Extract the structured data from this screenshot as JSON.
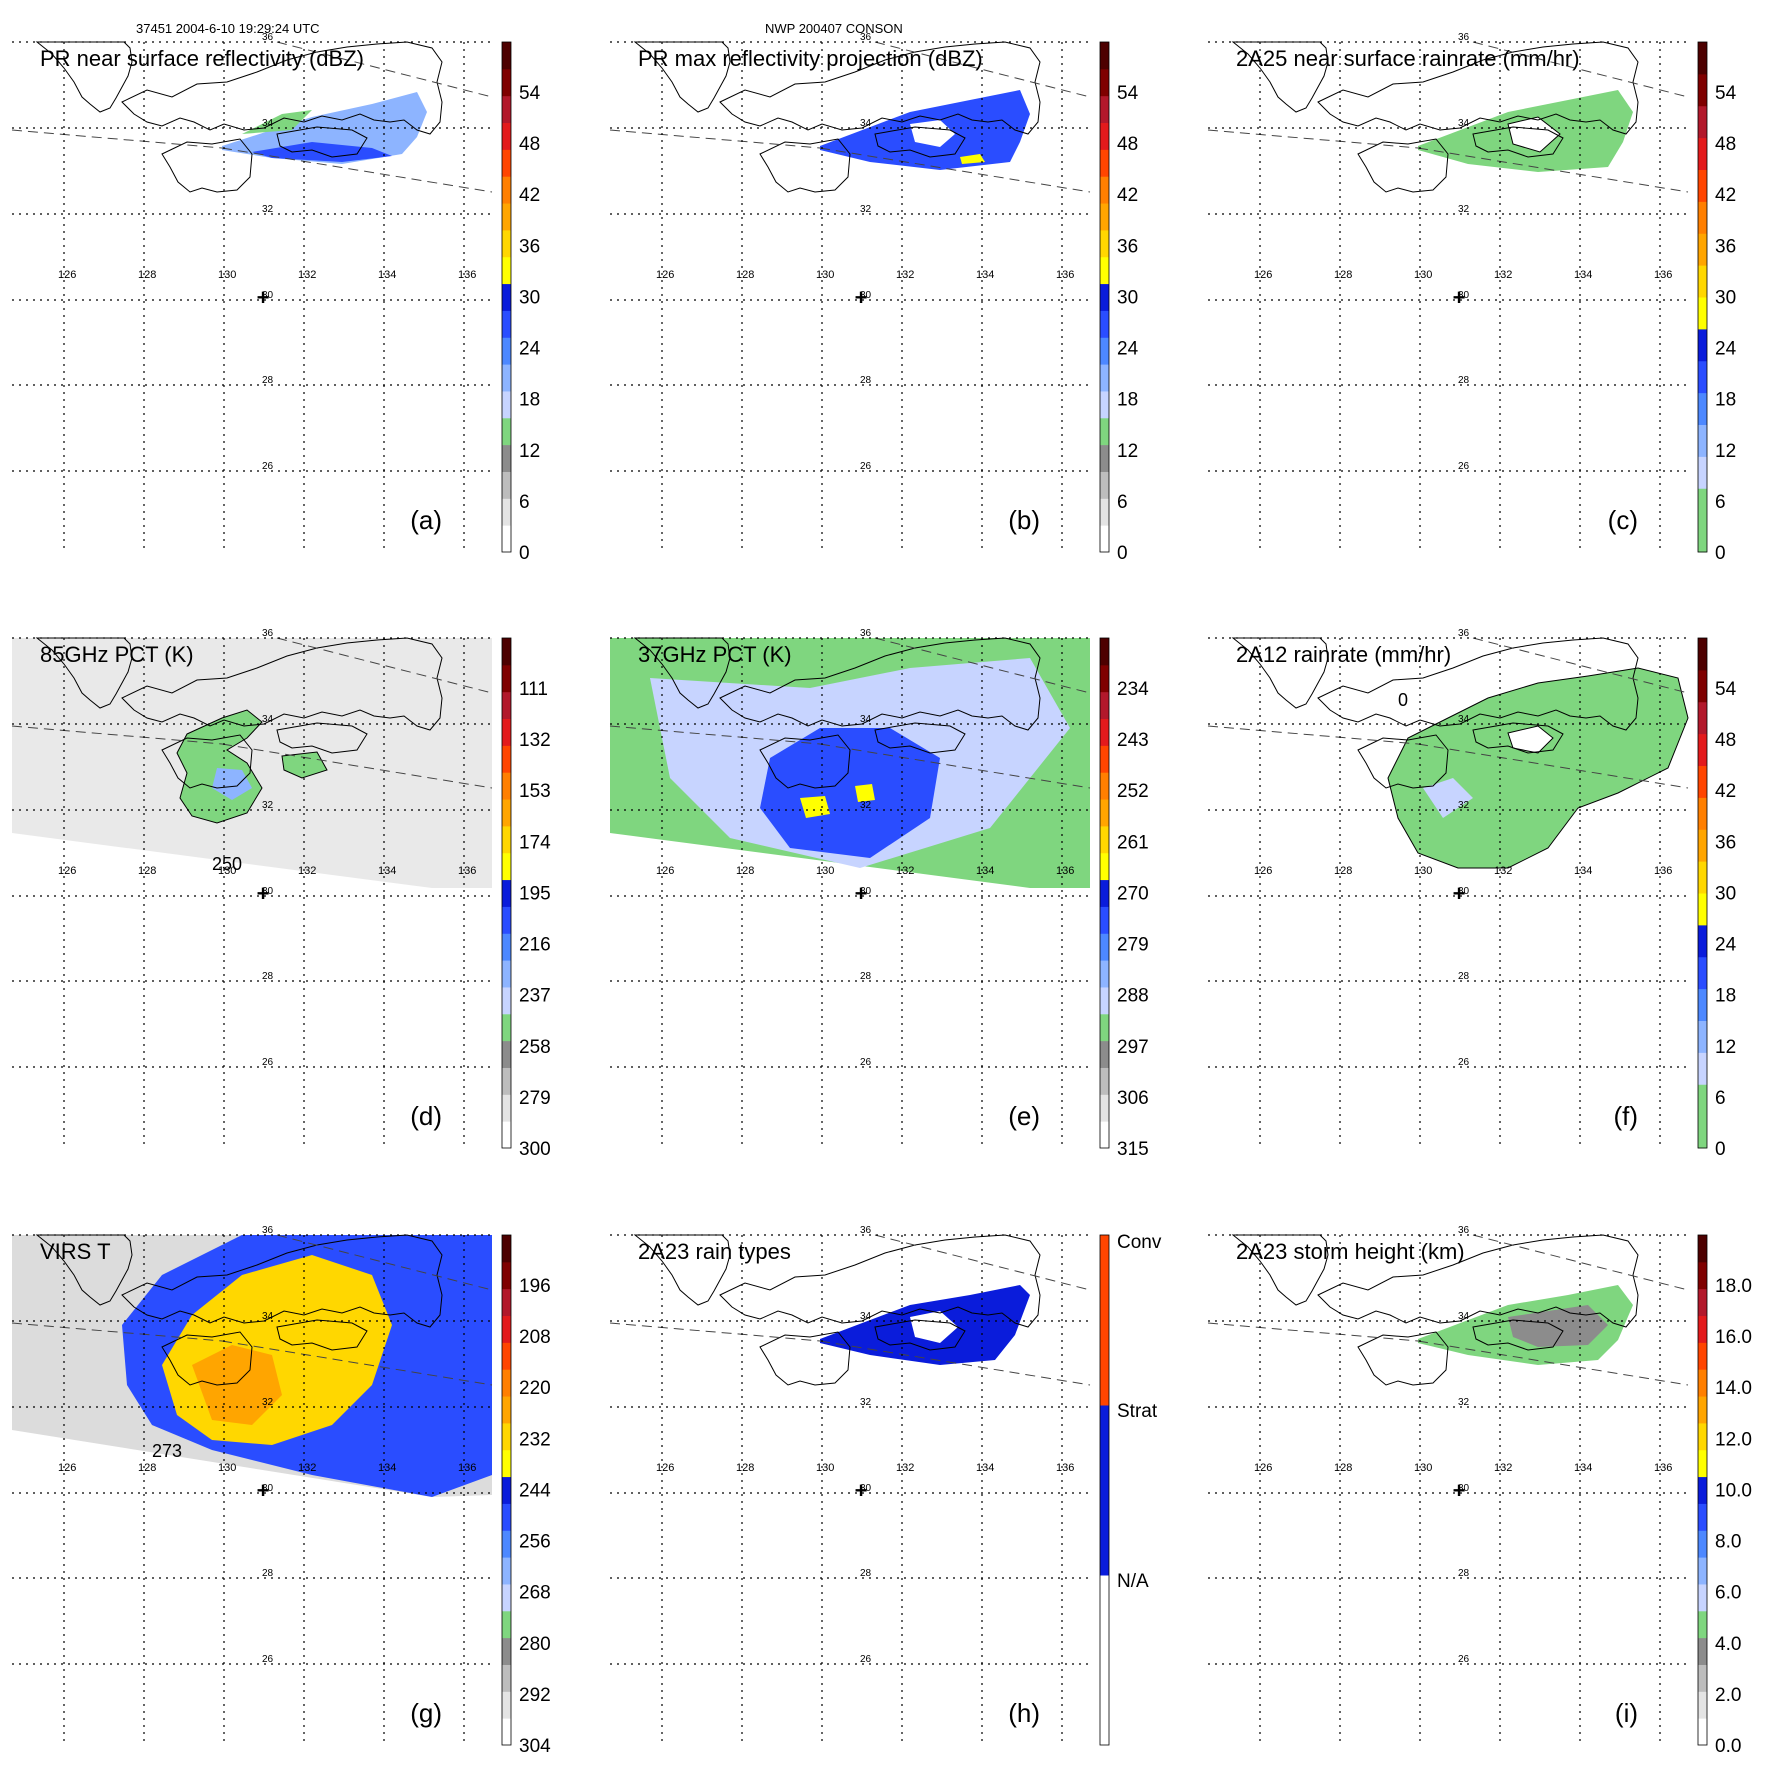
{
  "header": {
    "orbit_time": "37451 2004-6-10 19:29:24 UTC",
    "storm": "NWP 200407 CONSON"
  },
  "map": {
    "lon_labels": [
      "126",
      "128",
      "130",
      "132",
      "134",
      "136"
    ],
    "lat_labels": [
      "36",
      "34",
      "32",
      "30",
      "28",
      "26"
    ],
    "center_marker": "+"
  },
  "panels": [
    {
      "id": "a",
      "title": "PR near surface reflectivity (dBZ)",
      "tag": "(a)",
      "cb_ticks": [
        "54",
        "48",
        "42",
        "36",
        "30",
        "24",
        "18",
        "12",
        "6",
        "0"
      ],
      "colors": [
        "#ffffff",
        "#e4e4e4",
        "#bdbdbd",
        "#8c8c8c",
        "#7fd67f",
        "#c7d4ff",
        "#8db4ff",
        "#4d88ff",
        "#2a4dff",
        "#0a1cdb",
        "#ffff00",
        "#ffd700",
        "#ffa500",
        "#ff7f00",
        "#ff4500",
        "#e31a1c",
        "#b2182b",
        "#7f0000",
        "#4d0000"
      ]
    },
    {
      "id": "b",
      "title": "PR max reflectivity projection (dBZ)",
      "tag": "(b)",
      "cb_ticks": [
        "54",
        "48",
        "42",
        "36",
        "30",
        "24",
        "18",
        "12",
        "6",
        "0"
      ],
      "colors": [
        "#ffffff",
        "#e4e4e4",
        "#bdbdbd",
        "#8c8c8c",
        "#7fd67f",
        "#c7d4ff",
        "#8db4ff",
        "#4d88ff",
        "#2a4dff",
        "#0a1cdb",
        "#ffff00",
        "#ffd700",
        "#ffa500",
        "#ff7f00",
        "#ff4500",
        "#e31a1c",
        "#b2182b",
        "#7f0000",
        "#4d0000"
      ]
    },
    {
      "id": "c",
      "title": "2A25 near surface rainrate (mm/hr)",
      "tag": "(c)",
      "cb_ticks": [
        "54",
        "48",
        "42",
        "36",
        "30",
        "24",
        "18",
        "12",
        "6",
        "0"
      ],
      "colors": [
        "#7fd67f",
        "#7fd67f",
        "#c7d4ff",
        "#8db4ff",
        "#4d88ff",
        "#2a4dff",
        "#0a1cdb",
        "#ffff00",
        "#ffd700",
        "#ffa500",
        "#ff7f00",
        "#ff4500",
        "#e31a1c",
        "#b2182b",
        "#7f0000",
        "#4d0000"
      ]
    },
    {
      "id": "d",
      "title": "85GHz PCT (K)",
      "tag": "(d)",
      "contour_label": "250",
      "cb_ticks": [
        "111",
        "132",
        "153",
        "174",
        "195",
        "216",
        "237",
        "258",
        "279",
        "300"
      ],
      "colors": [
        "#ffffff",
        "#e4e4e4",
        "#bdbdbd",
        "#8c8c8c",
        "#7fd67f",
        "#c7d4ff",
        "#8db4ff",
        "#4d88ff",
        "#2a4dff",
        "#0a1cdb",
        "#ffff00",
        "#ffd700",
        "#ffa500",
        "#ff7f00",
        "#ff4500",
        "#e31a1c",
        "#b2182b",
        "#7f0000",
        "#4d0000"
      ]
    },
    {
      "id": "e",
      "title": "37GHz PCT (K)",
      "tag": "(e)",
      "cb_ticks": [
        "234",
        "243",
        "252",
        "261",
        "270",
        "279",
        "288",
        "297",
        "306",
        "315"
      ],
      "colors": [
        "#ffffff",
        "#e4e4e4",
        "#bdbdbd",
        "#8c8c8c",
        "#7fd67f",
        "#c7d4ff",
        "#8db4ff",
        "#4d88ff",
        "#2a4dff",
        "#0a1cdb",
        "#ffff00",
        "#ffd700",
        "#ffa500",
        "#ff7f00",
        "#ff4500",
        "#e31a1c",
        "#b2182b",
        "#7f0000",
        "#4d0000"
      ]
    },
    {
      "id": "f",
      "title": "2A12 rainrate (mm/hr)",
      "tag": "(f)",
      "contour_label": "0",
      "cb_ticks": [
        "54",
        "48",
        "42",
        "36",
        "30",
        "24",
        "18",
        "12",
        "6",
        "0"
      ],
      "colors": [
        "#7fd67f",
        "#7fd67f",
        "#c7d4ff",
        "#8db4ff",
        "#4d88ff",
        "#2a4dff",
        "#0a1cdb",
        "#ffff00",
        "#ffd700",
        "#ffa500",
        "#ff7f00",
        "#ff4500",
        "#e31a1c",
        "#b2182b",
        "#7f0000",
        "#4d0000"
      ]
    },
    {
      "id": "g",
      "title": "VIRS T",
      "tag": "(g)",
      "contour_label": "273",
      "cb_ticks": [
        "196",
        "208",
        "220",
        "232",
        "244",
        "256",
        "268",
        "280",
        "292",
        "304"
      ],
      "colors": [
        "#ffffff",
        "#e4e4e4",
        "#bdbdbd",
        "#8c8c8c",
        "#7fd67f",
        "#c7d4ff",
        "#8db4ff",
        "#4d88ff",
        "#2a4dff",
        "#0a1cdb",
        "#ffff00",
        "#ffd700",
        "#ffa500",
        "#ff7f00",
        "#ff4500",
        "#e31a1c",
        "#b2182b",
        "#7f0000",
        "#4d0000"
      ]
    },
    {
      "id": "h",
      "title": "2A23 rain types",
      "tag": "(h)",
      "cb_ticks": [
        "Conv",
        "Strat",
        "N/A"
      ],
      "colors": [
        "#ffffff",
        "#0a1cdb",
        "#ff4500"
      ]
    },
    {
      "id": "i",
      "title": "2A23 storm height (km)",
      "tag": "(i)",
      "cb_ticks": [
        "18.0",
        "16.0",
        "14.0",
        "12.0",
        "10.0",
        "8.0",
        "6.0",
        "4.0",
        "2.0",
        "0.0"
      ],
      "colors": [
        "#ffffff",
        "#e4e4e4",
        "#bdbdbd",
        "#8c8c8c",
        "#7fd67f",
        "#c7d4ff",
        "#8db4ff",
        "#4d88ff",
        "#2a4dff",
        "#0a1cdb",
        "#ffff00",
        "#ffd700",
        "#ffa500",
        "#ff7f00",
        "#ff4500",
        "#e31a1c",
        "#b2182b",
        "#7f0000",
        "#4d0000"
      ]
    }
  ]
}
